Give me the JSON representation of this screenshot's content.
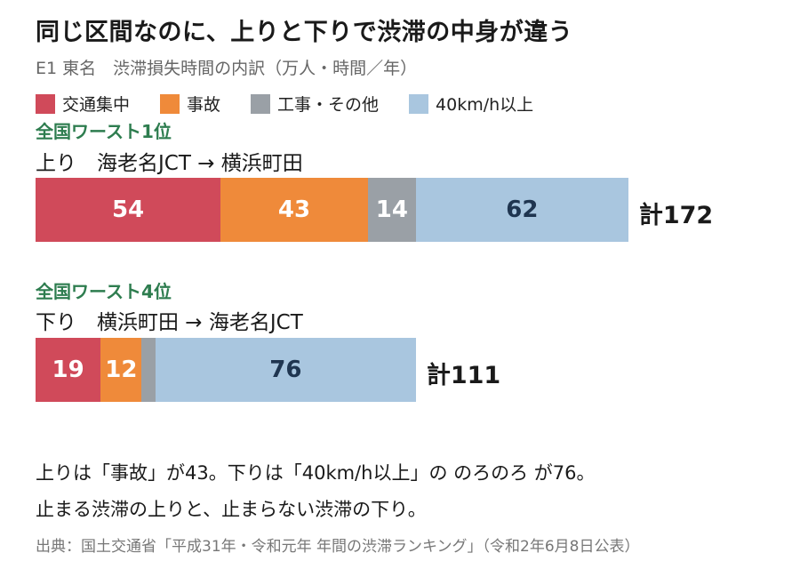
{
  "title": "同じ区間なのに、上りと下りで渋滞の中身が違う",
  "subtitle": "E1 東名　渋滞損失時間の内訳（万人・時間／年）",
  "colors": {
    "congestion": "#d04a5a",
    "accident": "#ef8a3a",
    "construction": "#9aa0a6",
    "slow": "#a9c6df",
    "rank": "#2e7d4f"
  },
  "legend": [
    {
      "label": "交通集中",
      "color": "#d04a5a"
    },
    {
      "label": "事故",
      "color": "#ef8a3a"
    },
    {
      "label": "工事・その他",
      "color": "#9aa0a6"
    },
    {
      "label": "40km/h以上",
      "color": "#a9c6df"
    }
  ],
  "up": {
    "rank": "全国ワースト1位",
    "route": "上り　海老名JCT → 横浜町田",
    "total": "計172"
  },
  "down": {
    "rank": "全国ワースト4位",
    "route": "下り　横浜町田 → 海老名JCT",
    "total": "計111"
  },
  "notes": {
    "line1": "上りは「事故」が43。下りは「40km/h以上」の のろのろ が76。",
    "line2": "止まる渋滞の上りと、止まらない渋滞の下り。"
  },
  "source": "出典：国土交通省「平成31年・令和元年 年間の渋滞ランキング」（令和2年6月8日公表）",
  "chart_data": {
    "type": "bar",
    "orientation": "horizontal",
    "stacked": true,
    "categories": [
      "上り　海老名JCT → 横浜町田",
      "下り　横浜町田 → 海老名JCT"
    ],
    "series": [
      {
        "name": "交通集中",
        "values": [
          54,
          19
        ],
        "color": "#d04a5a"
      },
      {
        "name": "事故",
        "values": [
          43,
          12
        ],
        "color": "#ef8a3a"
      },
      {
        "name": "工事・その他",
        "values": [
          14,
          4
        ],
        "color": "#9aa0a6"
      },
      {
        "name": "40km/h以上",
        "values": [
          62,
          76
        ],
        "color": "#a9c6df"
      }
    ],
    "totals": [
      172,
      111
    ],
    "title": "同じ区間なのに、上りと下りで渋滞の中身が違う",
    "legend_position": "top-left",
    "grid": false
  }
}
